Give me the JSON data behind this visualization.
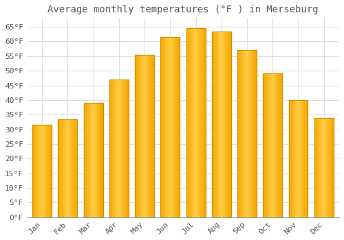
{
  "title": "Average monthly temperatures (°F ) in Merseburg",
  "months": [
    "Jan",
    "Feb",
    "Mar",
    "Apr",
    "May",
    "Jun",
    "Jul",
    "Aug",
    "Sep",
    "Oct",
    "Nov",
    "Dec"
  ],
  "values": [
    31.5,
    33.5,
    39.0,
    47.0,
    55.5,
    61.5,
    64.5,
    63.5,
    57.0,
    49.0,
    40.0,
    34.0
  ],
  "bar_color_light": "#FFCC44",
  "bar_color_dark": "#F5A800",
  "bar_edge_color": "#CC8800",
  "background_color": "#FFFFFF",
  "grid_color": "#DDDDDD",
  "text_color": "#555555",
  "ylim": [
    0,
    68
  ],
  "yticks": [
    0,
    5,
    10,
    15,
    20,
    25,
    30,
    35,
    40,
    45,
    50,
    55,
    60,
    65
  ],
  "title_fontsize": 10,
  "tick_fontsize": 8,
  "font_family": "monospace"
}
